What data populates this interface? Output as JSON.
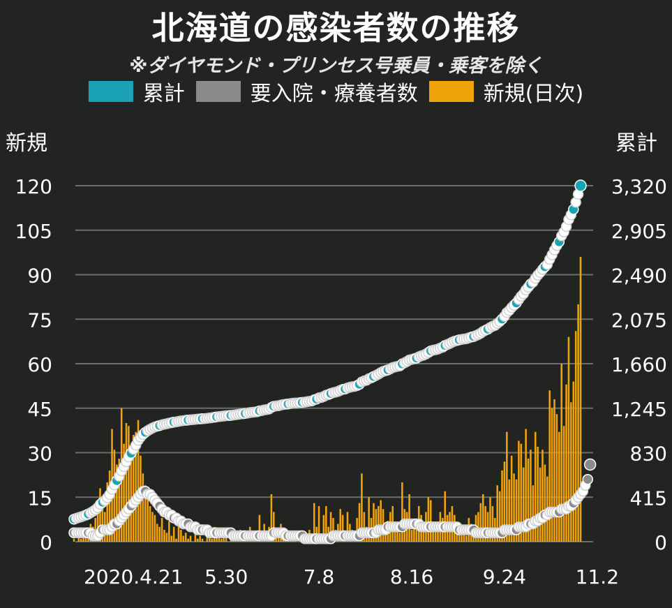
{
  "title": "北海道の感染者数の推移",
  "subtitle": "※ダイヤモンド・プリンセス号乗員・乗客を除く",
  "legend": [
    {
      "label": "累計",
      "color": "#1aa3b5"
    },
    {
      "label": "要入院・療養者数",
      "color": "#8a8a8a"
    },
    {
      "label": "新規(日次)",
      "color": "#f0a30a"
    }
  ],
  "colors": {
    "background": "#212421",
    "grid": "#6b6e6b",
    "cumulative": "#1aa3b5",
    "active": "#8a8a8a",
    "daily": "#f0a30a",
    "dot_outline": "#ffffff"
  },
  "chart_data": {
    "type": "bar+line",
    "title": "北海道の感染者数の推移",
    "left_axis": {
      "label": "新規",
      "ticks": [
        "120",
        "105",
        "90",
        "75",
        "60",
        "45",
        "30",
        "15",
        "0"
      ],
      "range": [
        0,
        120
      ]
    },
    "right_axis": {
      "label": "累計",
      "ticks": [
        "3,320",
        "2,905",
        "2,490",
        "2,075",
        "1,660",
        "1,245",
        "830",
        "415",
        "0"
      ],
      "range": [
        0,
        3320
      ]
    },
    "x_tick_labels": [
      "2020.4.21",
      "5.30",
      "7.8",
      "8.16",
      "9.24",
      "11.2"
    ],
    "x_tick_day_index": [
      25,
      64,
      103,
      142,
      181,
      220
    ],
    "grid": true,
    "legend_position": "top",
    "daily_new": [
      1,
      0,
      2,
      1,
      3,
      2,
      4,
      6,
      5,
      8,
      12,
      18,
      15,
      10,
      20,
      24,
      38,
      31,
      26,
      28,
      45,
      33,
      40,
      39,
      31,
      36,
      37,
      41,
      29,
      23,
      19,
      15,
      12,
      10,
      9,
      6,
      5,
      8,
      4,
      3,
      7,
      2,
      5,
      1,
      6,
      4,
      2,
      3,
      1,
      2,
      0,
      3,
      1,
      2,
      1,
      0,
      2,
      3,
      1,
      5,
      4,
      2,
      1,
      3,
      2,
      0,
      1,
      2,
      3,
      2,
      4,
      1,
      2,
      3,
      5,
      2,
      1,
      3,
      9,
      2,
      6,
      2,
      5,
      16,
      10,
      3,
      2,
      6,
      4,
      2,
      1,
      3,
      2,
      1,
      0,
      2,
      1,
      3,
      2,
      4,
      2,
      13,
      5,
      12,
      2,
      9,
      12,
      5,
      10,
      8,
      4,
      6,
      11,
      9,
      3,
      10,
      6,
      4,
      2,
      8,
      13,
      23,
      10,
      5,
      15,
      8,
      13,
      11,
      12,
      14,
      11,
      6,
      7,
      10,
      12,
      5,
      4,
      3,
      20,
      11,
      10,
      16,
      4,
      6,
      5,
      12,
      9,
      6,
      10,
      15,
      14,
      6,
      4,
      5,
      10,
      8,
      17,
      9,
      10,
      12,
      9,
      6,
      5,
      3,
      4,
      2,
      8,
      6,
      5,
      9,
      10,
      13,
      16,
      12,
      10,
      15,
      12,
      8,
      19,
      17,
      24,
      27,
      37,
      21,
      29,
      23,
      21,
      34,
      33,
      25,
      38,
      28,
      31,
      19,
      37,
      32,
      25,
      31,
      26,
      22,
      51,
      45,
      48,
      43,
      37,
      60,
      39,
      53,
      69,
      47,
      54,
      71,
      80,
      96
    ],
    "series": [
      {
        "name": "累計",
        "values": [
          210,
          218,
          225,
          232,
          240,
          248,
          258,
          270,
          283,
          298,
          318,
          348,
          368,
          383,
          410,
          440,
          488,
          530,
          570,
          610,
          660,
          700,
          745,
          790,
          825,
          862,
          900,
          945,
          975,
          1000,
          1020,
          1035,
          1048,
          1060,
          1070,
          1077,
          1083,
          1090,
          1095,
          1100,
          1106,
          1110,
          1115,
          1117,
          1122,
          1126,
          1129,
          1132,
          1134,
          1137,
          1138,
          1141,
          1143,
          1145,
          1147,
          1148,
          1151,
          1154,
          1156,
          1160,
          1164,
          1167,
          1169,
          1172,
          1175,
          1176,
          1178,
          1181,
          1184,
          1187,
          1191,
          1193,
          1196,
          1199,
          1204,
          1207,
          1209,
          1212,
          1220,
          1223,
          1229,
          1232,
          1237,
          1252,
          1262,
          1266,
          1268,
          1274,
          1279,
          1282,
          1284,
          1288,
          1291,
          1293,
          1294,
          1297,
          1299,
          1302,
          1305,
          1309,
          1312,
          1324,
          1330,
          1342,
          1345,
          1354,
          1366,
          1372,
          1382,
          1390,
          1395,
          1401,
          1412,
          1421,
          1424,
          1434,
          1440,
          1445,
          1448,
          1456,
          1468,
          1490,
          1500,
          1505,
          1520,
          1528,
          1540,
          1551,
          1563,
          1577,
          1588,
          1595,
          1602,
          1612,
          1624,
          1630,
          1635,
          1639,
          1658,
          1669,
          1680,
          1695,
          1700,
          1706,
          1712,
          1724,
          1733,
          1740,
          1750,
          1765,
          1779,
          1786,
          1790,
          1796,
          1806,
          1814,
          1830,
          1839,
          1849,
          1861,
          1870,
          1876,
          1882,
          1886,
          1890,
          1893,
          1901,
          1908,
          1913,
          1922,
          1932,
          1944,
          1960,
          1972,
          1982,
          1997,
          2009,
          2017,
          2036,
          2053,
          2076,
          2102,
          2137,
          2156,
          2183,
          2205,
          2226,
          2258,
          2289,
          2312,
          2348,
          2374,
          2403,
          2421,
          2456,
          2486,
          2510,
          2539,
          2564,
          2585,
          2633,
          2675,
          2720,
          2761,
          2796,
          2852,
          2889,
          2939,
          3004,
          3048,
          3099,
          3165,
          3240,
          3320
        ]
      },
      {
        "name": "要入院・療養者数",
        "values": [
          3,
          3,
          3,
          3,
          3,
          3,
          3,
          3,
          2,
          2,
          2,
          3,
          4,
          4,
          4,
          4,
          5,
          6,
          6,
          7,
          8,
          9,
          10,
          11,
          12,
          13,
          14,
          15,
          16,
          17,
          17,
          16,
          16,
          15,
          14,
          13,
          12,
          11,
          10,
          10,
          9,
          9,
          8,
          8,
          7,
          7,
          6,
          6,
          6,
          5,
          5,
          5,
          4,
          4,
          4,
          4,
          4,
          3,
          3,
          3,
          3,
          3,
          3,
          3,
          3,
          3,
          3,
          2,
          2,
          2,
          2,
          2,
          2,
          2,
          2,
          2,
          2,
          2,
          2,
          2,
          2,
          2,
          2,
          2,
          3,
          3,
          3,
          3,
          3,
          2,
          2,
          2,
          2,
          2,
          2,
          2,
          2,
          1,
          1,
          1,
          1,
          1,
          1,
          1,
          1,
          1,
          1,
          1,
          1,
          2,
          2,
          2,
          2,
          2,
          2,
          2,
          2,
          2,
          2,
          2,
          2,
          3,
          3,
          3,
          3,
          3,
          3,
          3,
          4,
          4,
          4,
          4,
          5,
          5,
          5,
          5,
          5,
          5,
          5,
          6,
          6,
          6,
          6,
          6,
          6,
          6,
          5,
          5,
          5,
          5,
          5,
          5,
          5,
          5,
          5,
          5,
          5,
          5,
          5,
          5,
          5,
          5,
          4,
          4,
          4,
          4,
          4,
          4,
          4,
          3,
          3,
          3,
          3,
          3,
          3,
          3,
          3,
          3,
          3,
          3,
          3,
          4,
          4,
          4,
          4,
          4,
          4,
          5,
          5,
          5,
          5,
          6,
          6,
          6,
          7,
          7,
          8,
          8,
          9,
          9,
          10,
          10,
          10,
          10,
          10,
          11,
          11,
          11,
          12,
          12,
          13,
          14,
          15,
          16,
          17,
          19,
          21,
          26
        ]
      }
    ]
  }
}
